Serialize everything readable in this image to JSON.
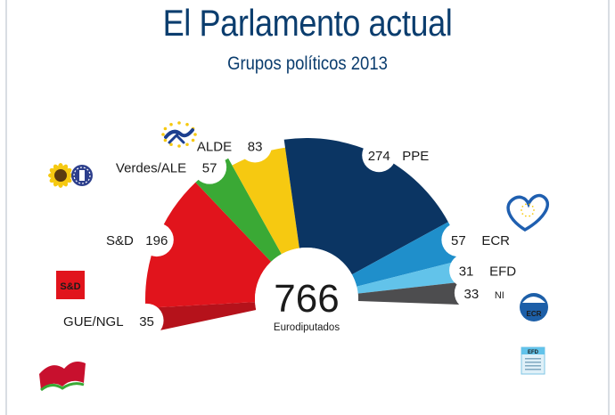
{
  "title": "El Parlamento actual",
  "subtitle": "Grupos políticos 2013",
  "center": {
    "total": "766",
    "caption": "Eurodiputados"
  },
  "chart_data": {
    "type": "pie",
    "variant": "semicircle-hemicycle",
    "title": "El Parlamento actual",
    "subtitle": "Grupos políticos 2013",
    "total": 766,
    "unit": "Eurodiputados",
    "series": [
      {
        "name": "GUE/NGL",
        "value": 35,
        "color": "#b5121b"
      },
      {
        "name": "S&D",
        "value": 196,
        "color": "#e1141c"
      },
      {
        "name": "Verdes/ALE",
        "value": 57,
        "color": "#3aa935"
      },
      {
        "name": "ALDE",
        "value": 83,
        "color": "#f6c911"
      },
      {
        "name": "PPE",
        "value": 274,
        "color": "#0b3563"
      },
      {
        "name": "ECR",
        "value": 57,
        "color": "#1f8fcb"
      },
      {
        "name": "EFD",
        "value": 31,
        "color": "#62c3ea"
      },
      {
        "name": "NI",
        "value": 33,
        "color": "#4d4d4f"
      }
    ]
  },
  "logos": {
    "GUE/NGL": "gue-flag-logo",
    "S&D": "sd-logo",
    "Verdes/ALE": "sunflower-logo",
    "ALDE": "alde-stars-logo",
    "PPE": "ppe-heart-logo",
    "ECR": "ecr-logo",
    "EFD": "efd-logo"
  },
  "logo_text": {
    "sd": "S&D",
    "ecr": "ECR",
    "efd": "EFD"
  }
}
